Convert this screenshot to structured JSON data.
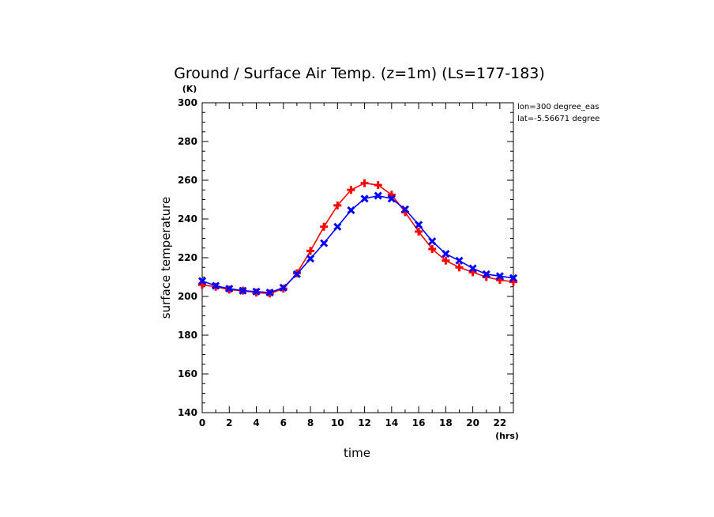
{
  "chart_data": {
    "type": "line",
    "title": "Ground / Surface Air Temp. (z=1m) (Ls=177-183)",
    "xlabel": "time",
    "ylabel": "surface temperature",
    "x_unit": "(hrs)",
    "y_unit": "(K)",
    "xlim": [
      0,
      23
    ],
    "ylim": [
      140,
      300
    ],
    "xticks": [
      "0",
      "2",
      "4",
      "6",
      "8",
      "10",
      "12",
      "14",
      "16",
      "18",
      "20",
      "22"
    ],
    "yticks": [
      "140",
      "160",
      "180",
      "200",
      "220",
      "240",
      "260",
      "280",
      "300"
    ],
    "annotations": [
      "lon=300 degree_eas",
      "lat=-5.56671 degree"
    ],
    "x": [
      0,
      1,
      2,
      3,
      4,
      5,
      6,
      7,
      8,
      9,
      10,
      11,
      12,
      13,
      14,
      15,
      16,
      17,
      18,
      19,
      20,
      21,
      22,
      23
    ],
    "series": [
      {
        "color": "#ff0000",
        "marker": "plus",
        "values": [
          206,
          205,
          203.5,
          203,
          202,
          201.5,
          204,
          212,
          223.5,
          236,
          247,
          255,
          258.5,
          257.5,
          252.5,
          243.5,
          233.5,
          224.5,
          218.5,
          215,
          212.5,
          210,
          208.5,
          207.5
        ]
      },
      {
        "color": "#0000ff",
        "marker": "x",
        "values": [
          208,
          205.5,
          204,
          203,
          202.5,
          202,
          204.5,
          211.5,
          219.5,
          227.5,
          236,
          244.5,
          250.5,
          252,
          250.5,
          245,
          237,
          228.5,
          222,
          218.5,
          214.5,
          211.5,
          210.5,
          209.5
        ]
      }
    ]
  }
}
